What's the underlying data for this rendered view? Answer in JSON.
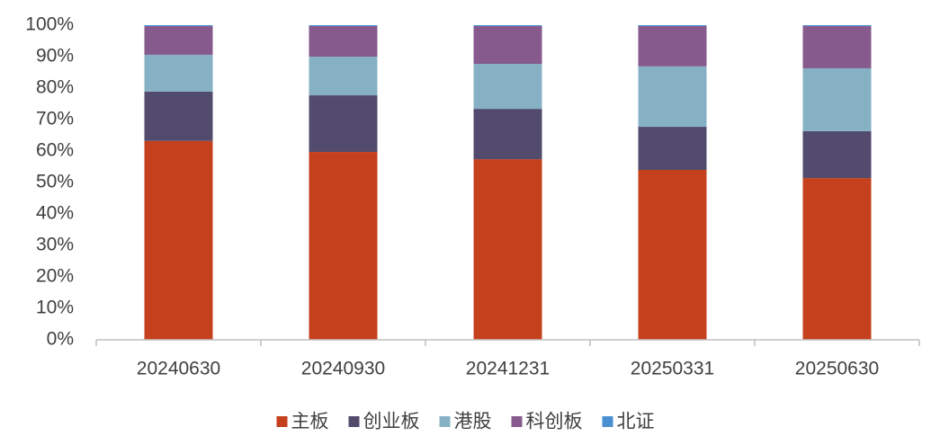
{
  "chart_data": {
    "type": "stacked-bar",
    "categories": [
      "20240630",
      "20240930",
      "20241231",
      "20250331",
      "20250630"
    ],
    "series": [
      {
        "name": "主板",
        "color": "#c5401c",
        "values": [
          63.2,
          59.7,
          57.4,
          54.0,
          51.4
        ]
      },
      {
        "name": "创业板",
        "color": "#524b6e",
        "values": [
          15.7,
          18.0,
          16.0,
          13.7,
          14.9
        ]
      },
      {
        "name": "港股",
        "color": "#86b1c5",
        "values": [
          11.7,
          12.3,
          14.3,
          19.2,
          20.0
        ]
      },
      {
        "name": "科创板",
        "color": "#865a8c",
        "values": [
          9.1,
          9.7,
          12.0,
          12.8,
          13.4
        ]
      },
      {
        "name": "北证",
        "color": "#4a90d0",
        "values": [
          0.3,
          0.3,
          0.3,
          0.3,
          0.3
        ]
      }
    ],
    "ylim": [
      0,
      100
    ],
    "yticks": [
      {
        "value": 0,
        "label": "0%"
      },
      {
        "value": 10,
        "label": "10%"
      },
      {
        "value": 20,
        "label": "20%"
      },
      {
        "value": 30,
        "label": "30%"
      },
      {
        "value": 40,
        "label": "40%"
      },
      {
        "value": 50,
        "label": "50%"
      },
      {
        "value": 60,
        "label": "60%"
      },
      {
        "value": 70,
        "label": "70%"
      },
      {
        "value": 80,
        "label": "80%"
      },
      {
        "value": 90,
        "label": "90%"
      },
      {
        "value": 100,
        "label": "100%"
      }
    ],
    "grid": false,
    "legend": "bottom"
  }
}
